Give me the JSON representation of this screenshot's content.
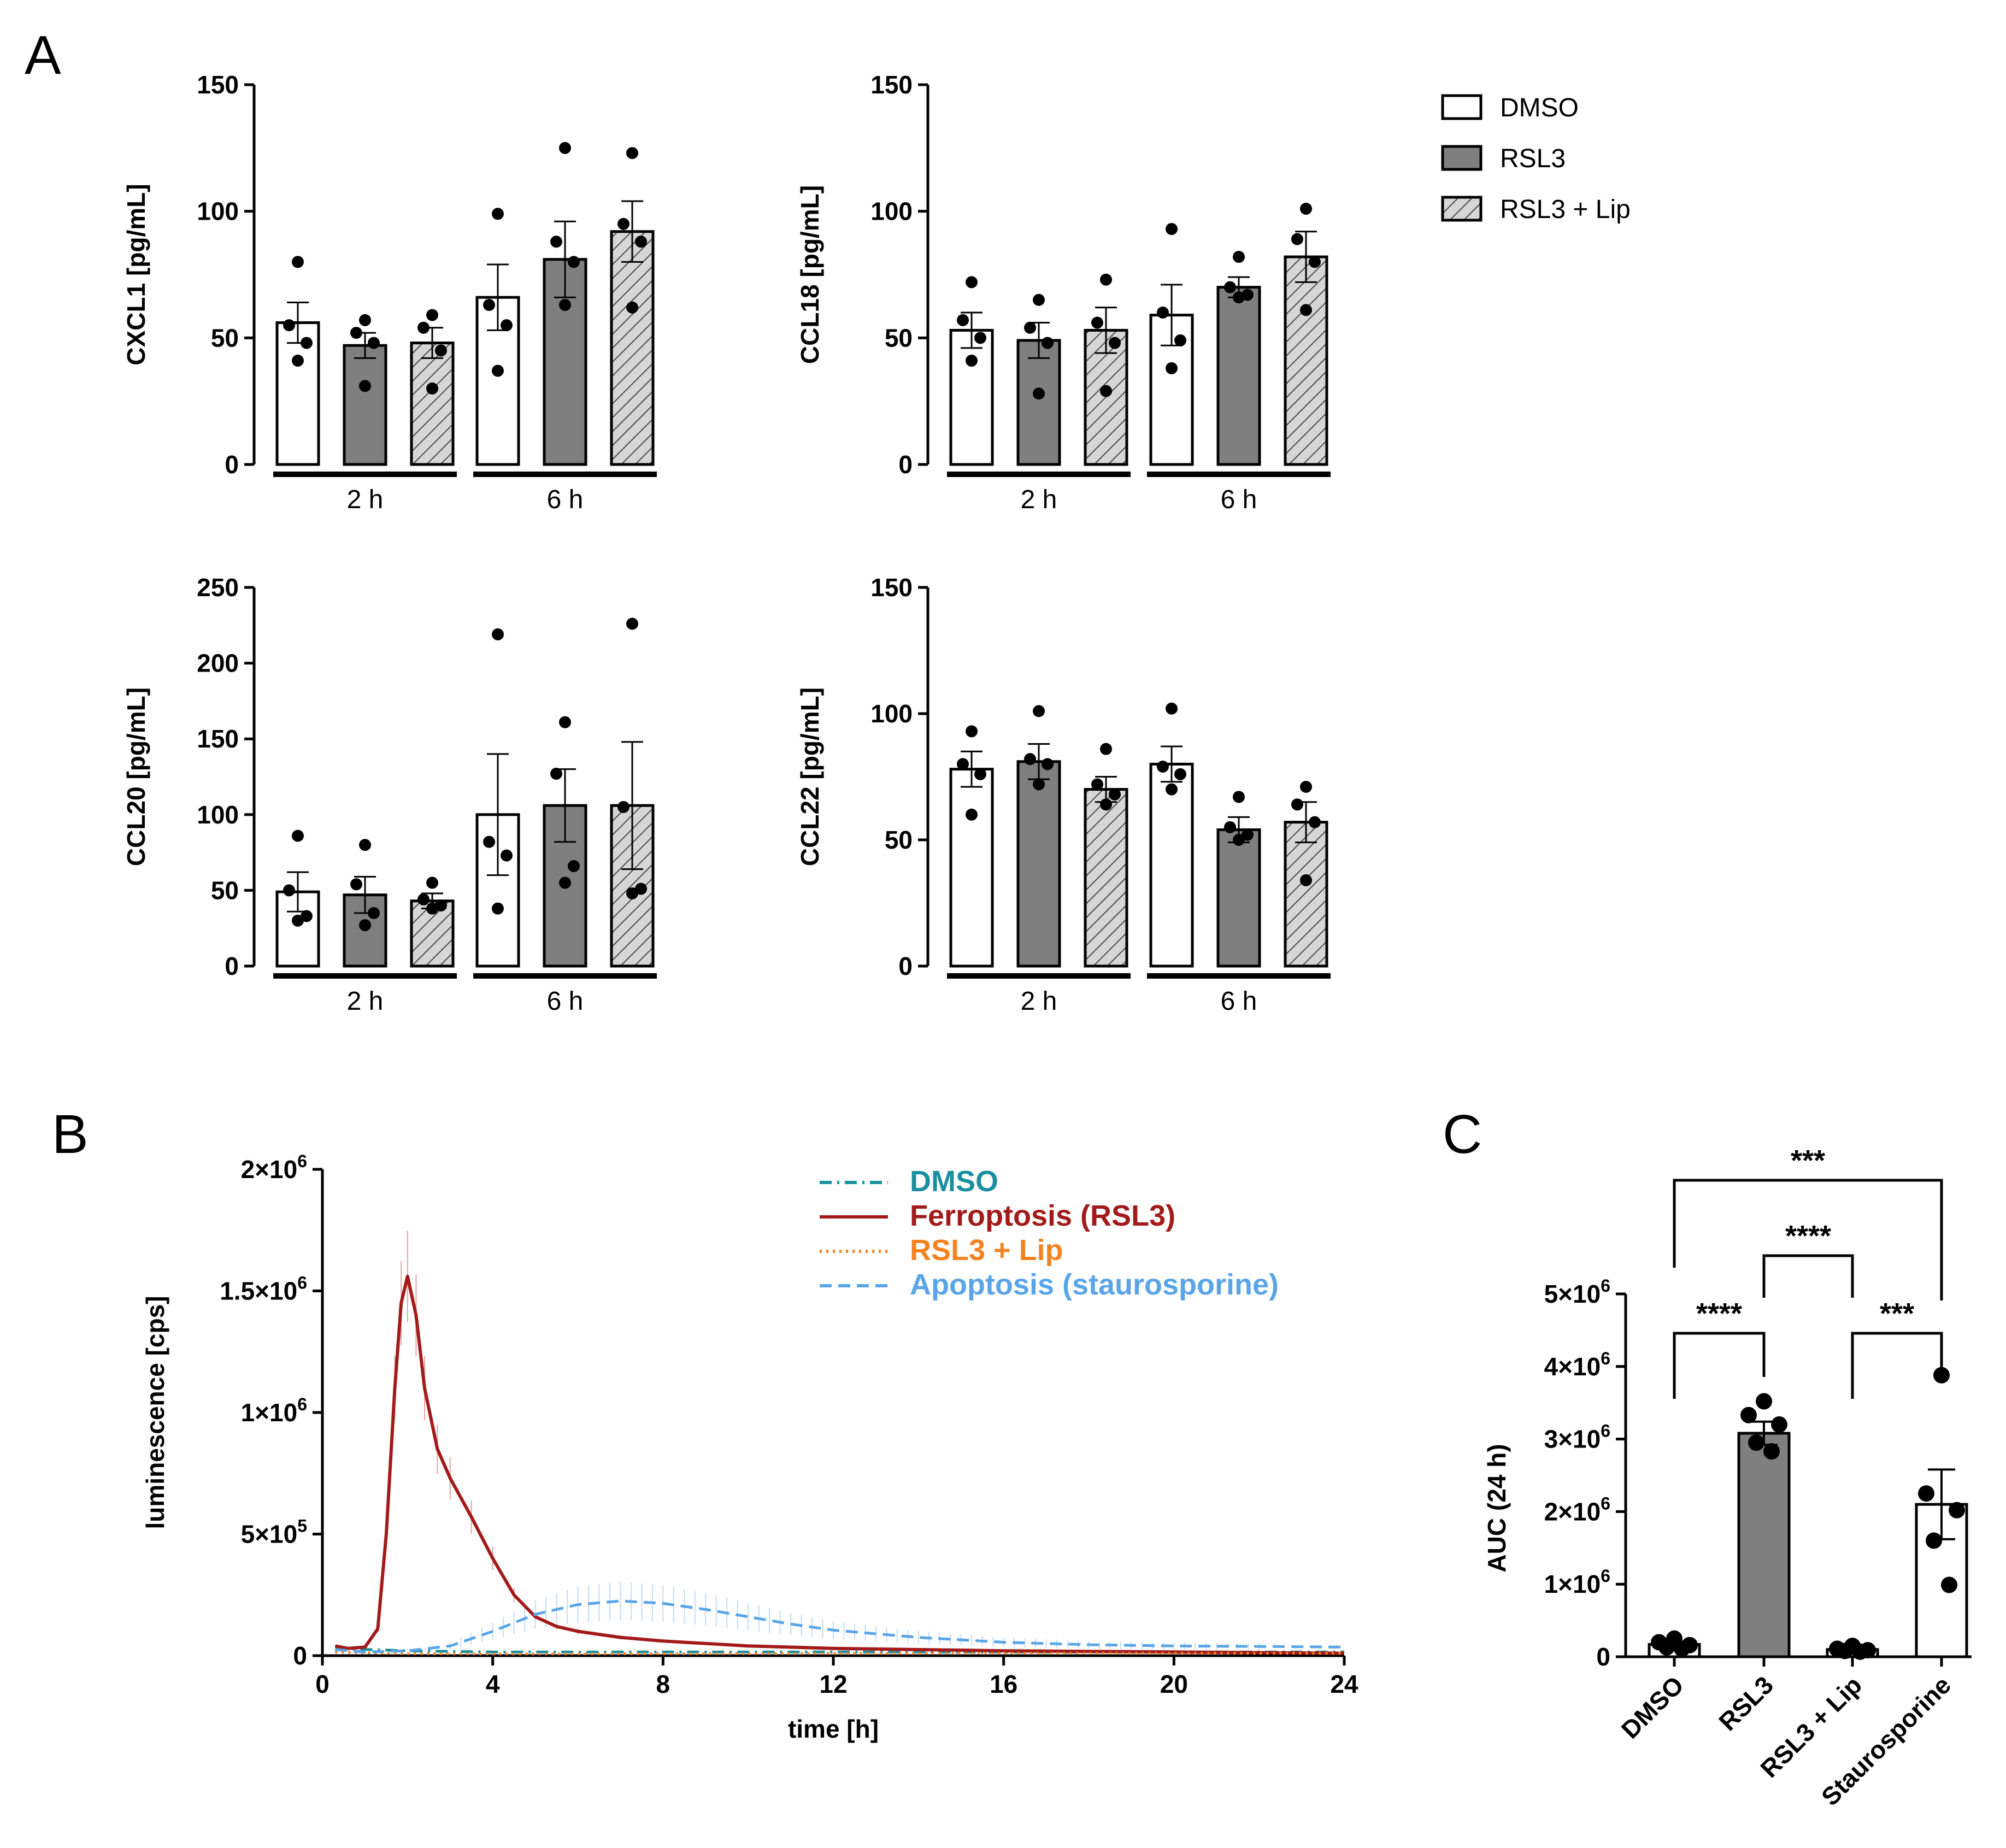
{
  "panel_labels": {
    "a": "A",
    "b": "B",
    "c": "C"
  },
  "colors": {
    "dmso_bar": "#ffffff",
    "rsl3_bar": "#7f7f7f",
    "lip_bar_hatch": "#d0d0d0",
    "line_dmso": "#1a8fa0",
    "line_ferroptosis": "#a31a1a",
    "line_lip": "#f5821f",
    "line_apoptosis": "#5aa5e8"
  },
  "legend_a": {
    "items": [
      {
        "label": "DMSO",
        "fill": "white"
      },
      {
        "label": "RSL3",
        "fill": "gray"
      },
      {
        "label": "RSL3 + Lip",
        "fill": "hatch"
      }
    ]
  },
  "chart_data": [
    {
      "type": "bar",
      "panel": "A",
      "ylabel": "CXCL1 [pg/mL]",
      "ylim": [
        0,
        150
      ],
      "yticks": [
        0,
        50,
        100,
        150
      ],
      "groups": [
        "2 h",
        "6 h"
      ],
      "series": [
        {
          "name": "DMSO",
          "means": [
            56,
            66
          ],
          "sem": [
            8,
            13
          ],
          "points": [
            [
              80,
              55,
              48,
              41
            ],
            [
              99,
              63,
              55,
              37
            ]
          ]
        },
        {
          "name": "RSL3",
          "means": [
            47,
            81
          ],
          "sem": [
            5,
            15
          ],
          "points": [
            [
              57,
              52,
              48,
              31
            ],
            [
              125,
              88,
              80,
              63
            ]
          ]
        },
        {
          "name": "RSL3 + Lip",
          "means": [
            48,
            92
          ],
          "sem": [
            6,
            12
          ],
          "points": [
            [
              59,
              54,
              45,
              30
            ],
            [
              123,
              95,
              88,
              62
            ]
          ]
        }
      ]
    },
    {
      "type": "bar",
      "panel": "A",
      "ylabel": "CCL18 [pg/mL]",
      "ylim": [
        0,
        150
      ],
      "yticks": [
        0,
        50,
        100,
        150
      ],
      "groups": [
        "2 h",
        "6 h"
      ],
      "series": [
        {
          "name": "DMSO",
          "means": [
            53,
            59
          ],
          "sem": [
            7,
            12
          ],
          "points": [
            [
              72,
              57,
              50,
              41
            ],
            [
              93,
              60,
              49,
              38
            ]
          ]
        },
        {
          "name": "RSL3",
          "means": [
            49,
            70
          ],
          "sem": [
            7,
            4
          ],
          "points": [
            [
              65,
              54,
              48,
              28
            ],
            [
              82,
              70,
              67,
              66
            ]
          ]
        },
        {
          "name": "RSL3 + Lip",
          "means": [
            53,
            82
          ],
          "sem": [
            9,
            10
          ],
          "points": [
            [
              73,
              56,
              48,
              29
            ],
            [
              101,
              89,
              80,
              61
            ]
          ]
        }
      ]
    },
    {
      "type": "bar",
      "panel": "A",
      "ylabel": "CCL20 [pg/mL]",
      "ylim": [
        0,
        250
      ],
      "yticks": [
        0,
        50,
        100,
        150,
        200,
        250
      ],
      "groups": [
        "2 h",
        "6 h"
      ],
      "series": [
        {
          "name": "DMSO",
          "means": [
            49,
            100
          ],
          "sem": [
            13,
            40
          ],
          "points": [
            [
              86,
              50,
              33,
              30
            ],
            [
              219,
              82,
              73,
              38
            ]
          ]
        },
        {
          "name": "RSL3",
          "means": [
            47,
            106
          ],
          "sem": [
            12,
            24
          ],
          "points": [
            [
              80,
              54,
              35,
              27
            ],
            [
              161,
              127,
              66,
              55
            ]
          ]
        },
        {
          "name": "RSL3 + Lip",
          "means": [
            43,
            106
          ],
          "sem": [
            5,
            42
          ],
          "points": [
            [
              55,
              44,
              40,
              38
            ],
            [
              226,
              105,
              51,
              48
            ]
          ]
        }
      ]
    },
    {
      "type": "bar",
      "panel": "A",
      "ylabel": "CCL22 [pg/mL]",
      "ylim": [
        0,
        150
      ],
      "yticks": [
        0,
        50,
        100,
        150
      ],
      "groups": [
        "2 h",
        "6 h"
      ],
      "series": [
        {
          "name": "DMSO",
          "means": [
            78,
            80
          ],
          "sem": [
            7,
            7
          ],
          "points": [
            [
              93,
              80,
              76,
              60
            ],
            [
              102,
              79,
              76,
              70
            ]
          ]
        },
        {
          "name": "RSL3",
          "means": [
            81,
            54
          ],
          "sem": [
            7,
            5
          ],
          "points": [
            [
              101,
              82,
              80,
              72
            ],
            [
              67,
              55,
              52,
              50
            ]
          ]
        },
        {
          "name": "RSL3 + Lip",
          "means": [
            70,
            57
          ],
          "sem": [
            5,
            8
          ],
          "points": [
            [
              86,
              72,
              68,
              64
            ],
            [
              71,
              64,
              57,
              34
            ]
          ]
        }
      ]
    },
    {
      "type": "line",
      "panel": "B",
      "xlabel": "time [h]",
      "ylabel": "luminescence [cps]",
      "xlim": [
        0,
        24
      ],
      "ylim": [
        0,
        2000000
      ],
      "xticks": [
        0,
        4,
        8,
        12,
        16,
        20,
        24
      ],
      "yticks": [
        0,
        500000,
        1000000,
        1500000,
        2000000
      ],
      "ytick_labels": [
        {
          "mant": "0",
          "exp": ""
        },
        {
          "mant": "5×10",
          "exp": "5"
        },
        {
          "mant": "1×10",
          "exp": "6"
        },
        {
          "mant": "1.5×10",
          "exp": "6"
        },
        {
          "mant": "2×10",
          "exp": "6"
        }
      ],
      "series": [
        {
          "name": "DMSO",
          "style": "dashdot",
          "x": [
            0.3,
            2,
            4,
            6,
            8,
            12,
            16,
            20,
            24
          ],
          "y": [
            30000,
            20000,
            15000,
            15000,
            15000,
            15000,
            15000,
            15000,
            15000
          ]
        },
        {
          "name": "Ferroptosis (RSL3)",
          "style": "solid",
          "x": [
            0.3,
            0.6,
            1.0,
            1.3,
            1.5,
            1.7,
            1.85,
            2.0,
            2.2,
            2.4,
            2.7,
            3.0,
            3.5,
            4.0,
            4.5,
            5.0,
            5.5,
            6.0,
            7.0,
            8.0,
            10.0,
            12.0,
            16.0,
            20.0,
            24.0
          ],
          "y": [
            40000,
            30000,
            35000,
            110000,
            500000,
            1100000,
            1450000,
            1560000,
            1400000,
            1100000,
            850000,
            730000,
            570000,
            400000,
            250000,
            160000,
            120000,
            100000,
            75000,
            60000,
            40000,
            30000,
            20000,
            15000,
            10000
          ]
        },
        {
          "name": "RSL3 + Lip",
          "style": "dotted",
          "x": [
            0.3,
            2,
            4,
            8,
            12,
            16,
            20,
            24
          ],
          "y": [
            15000,
            8000,
            7000,
            8000,
            9000,
            10000,
            10000,
            10000
          ]
        },
        {
          "name": "Apoptosis (staurosporine)",
          "style": "dashed",
          "x": [
            0.3,
            1,
            2,
            3,
            4,
            5,
            6,
            7,
            8,
            9,
            10,
            11,
            12,
            14,
            16,
            18,
            20,
            22,
            24
          ],
          "y": [
            25000,
            15000,
            20000,
            40000,
            100000,
            170000,
            210000,
            225000,
            215000,
            190000,
            160000,
            130000,
            105000,
            75000,
            55000,
            45000,
            40000,
            38000,
            35000
          ]
        }
      ]
    },
    {
      "type": "bar",
      "panel": "C",
      "ylabel": "AUC (24 h)",
      "ylim": [
        0,
        5000000
      ],
      "yticks": [
        0,
        1000000,
        2000000,
        3000000,
        4000000,
        5000000
      ],
      "ytick_labels": [
        {
          "mant": "0",
          "exp": ""
        },
        {
          "mant": "1×10",
          "exp": "6"
        },
        {
          "mant": "2×10",
          "exp": "6"
        },
        {
          "mant": "3×10",
          "exp": "6"
        },
        {
          "mant": "4×10",
          "exp": "6"
        },
        {
          "mant": "5×10",
          "exp": "6"
        }
      ],
      "categories": [
        "DMSO",
        "RSL3",
        "RSL3 + Lip",
        "Staurosporine"
      ],
      "values": [
        170000,
        3080000,
        100000,
        2100000
      ],
      "sem": [
        30000,
        160000,
        20000,
        480000
      ],
      "points": [
        [
          250000,
          200000,
          160000,
          130000,
          110000
        ],
        [
          3520000,
          3330000,
          3200000,
          2950000,
          2830000
        ],
        [
          150000,
          110000,
          90000,
          80000,
          70000
        ],
        [
          3880000,
          2250000,
          2020000,
          1600000,
          990000
        ]
      ],
      "significance": [
        {
          "from": 0,
          "to": 1,
          "label": "****"
        },
        {
          "from": 2,
          "to": 3,
          "label": "***"
        },
        {
          "from": 1,
          "to": 2,
          "label": "****"
        },
        {
          "from": 0,
          "to": 3,
          "label": "***"
        }
      ]
    }
  ]
}
